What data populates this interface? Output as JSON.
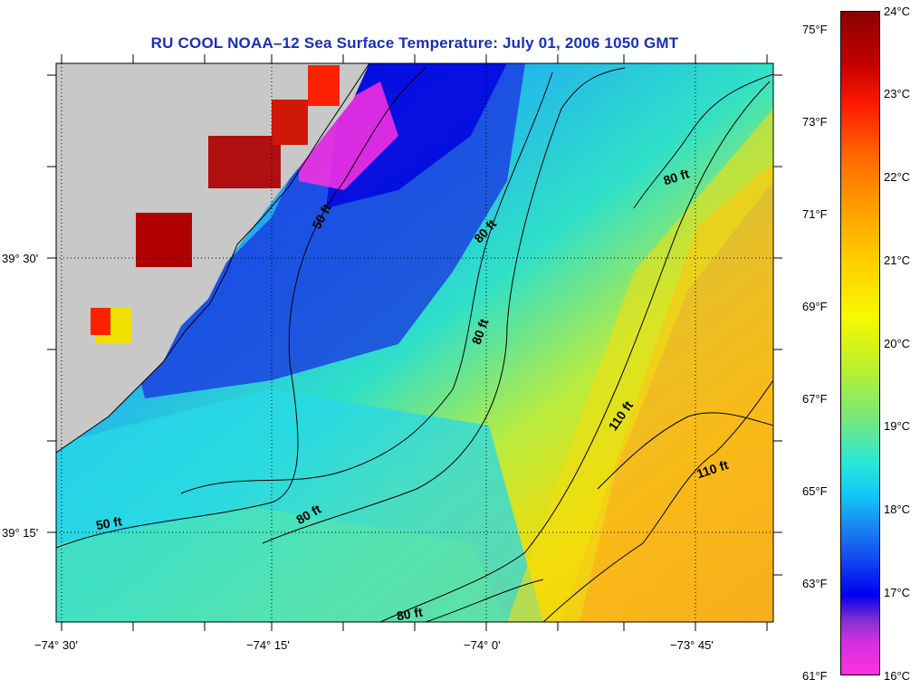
{
  "title": "RU COOL  NOAA–12  Sea Surface Temperature:  July 01, 2006 1050 GMT",
  "map": {
    "lat_labels": [
      "39° 30'",
      "39° 15'"
    ],
    "lon_labels": [
      "−74° 30'",
      "−74° 15'",
      "−74° 0'",
      "−73° 45'"
    ],
    "contour_labels": [
      "50 ft",
      "80 ft",
      "80 ft",
      "80 ft",
      "110 ft",
      "110 ft",
      "50 ft",
      "80 ft",
      "80 ft"
    ]
  },
  "colorbar": {
    "fahrenheit": [
      "75°F",
      "73°F",
      "71°F",
      "69°F",
      "67°F",
      "65°F",
      "63°F",
      "61°F"
    ],
    "celsius": [
      "24°C",
      "23°C",
      "22°C",
      "21°C",
      "20°C",
      "19°C",
      "18°C",
      "17°C",
      "16°C"
    ],
    "colors": [
      "#8b0000",
      "#ff1a00",
      "#ffa000",
      "#f8f800",
      "#70e880",
      "#10c8f8",
      "#1450f0",
      "#0000f0",
      "#ff30e0"
    ]
  },
  "land_color": "#c8c8c8"
}
